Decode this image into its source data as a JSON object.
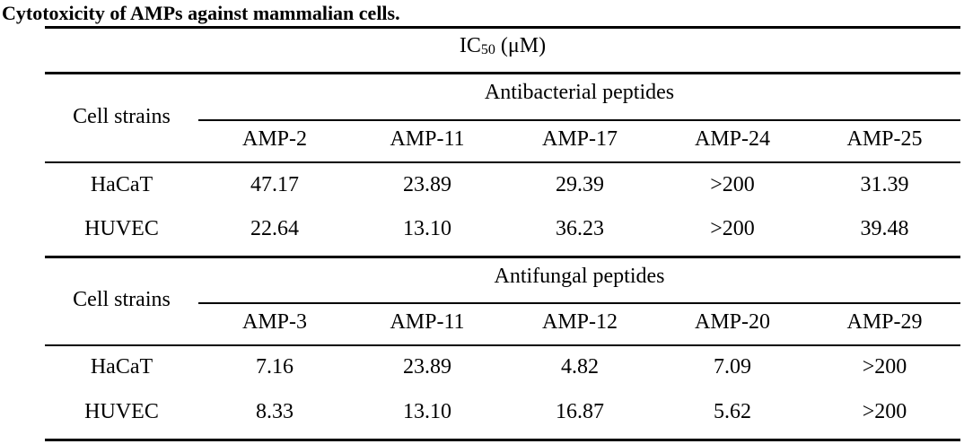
{
  "caption": "Cytotoxicity of AMPs against mammalian cells.",
  "unit_header": {
    "prefix": "IC",
    "subscript": "50",
    "suffix": " (μM)"
  },
  "sections": [
    {
      "row_header": "Cell strains",
      "group_label": "Antibacterial peptides",
      "columns": [
        "AMP-2",
        "AMP-11",
        "AMP-17",
        "AMP-24",
        "AMP-25"
      ],
      "rows": [
        {
          "label": "HaCaT",
          "values": [
            "47.17",
            "23.89",
            "29.39",
            ">200",
            "31.39"
          ]
        },
        {
          "label": "HUVEC",
          "values": [
            "22.64",
            "13.10",
            "36.23",
            ">200",
            "39.48"
          ]
        }
      ]
    },
    {
      "row_header": "Cell strains",
      "group_label": "Antifungal peptides",
      "columns": [
        "AMP-3",
        "AMP-11",
        "AMP-12",
        "AMP-20",
        "AMP-29"
      ],
      "rows": [
        {
          "label": "HaCaT",
          "values": [
            "7.16",
            "23.89",
            "4.82",
            "7.09",
            ">200"
          ]
        },
        {
          "label": "HUVEC",
          "values": [
            "8.33",
            "13.10",
            "16.87",
            "5.62",
            ">200"
          ]
        }
      ]
    }
  ]
}
